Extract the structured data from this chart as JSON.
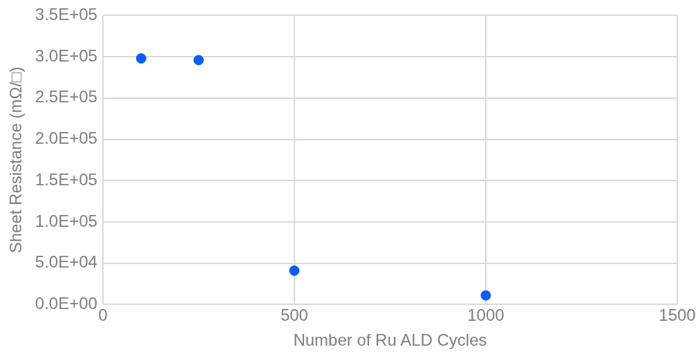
{
  "chart_data": {
    "type": "scatter",
    "xlabel": "Number of Ru ALD Cycles",
    "ylabel": "Sheet Resistance (mΩ/□)",
    "x": [
      100,
      250,
      500,
      1000
    ],
    "series": [
      {
        "color": "#0a5ff0",
        "values": [
          298000,
          296000,
          41000,
          11000
        ]
      }
    ],
    "xlim": [
      0,
      1500
    ],
    "xticks": [
      0,
      500,
      1000,
      1500
    ],
    "ylim": [
      0,
      350000
    ],
    "yticks": [
      {
        "value": 0,
        "label": "0.0E+00"
      },
      {
        "value": 50000,
        "label": "5.0E+04"
      },
      {
        "value": 100000,
        "label": "1.0E+05"
      },
      {
        "value": 150000,
        "label": "1.5E+05"
      },
      {
        "value": 200000,
        "label": "2.0E+05"
      },
      {
        "value": 250000,
        "label": "2.5E+05"
      },
      {
        "value": 300000,
        "label": "3.0E+05"
      },
      {
        "value": 350000,
        "label": "3.5E+05"
      }
    ],
    "grid": true,
    "legend": false,
    "marker": "circle"
  }
}
